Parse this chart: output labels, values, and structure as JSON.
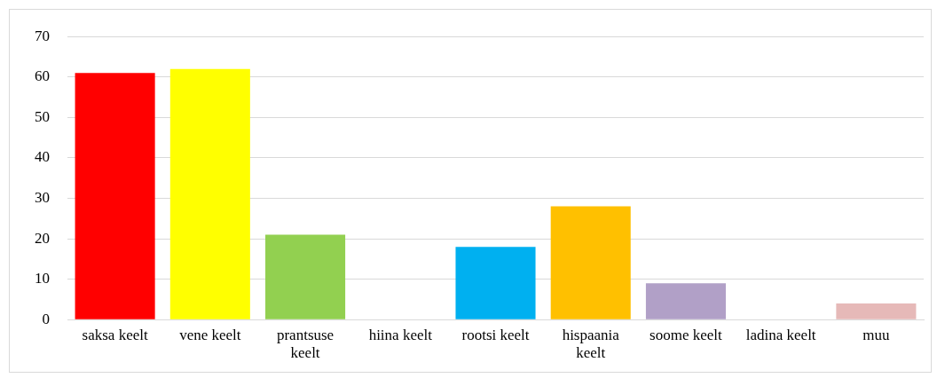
{
  "chart_data": {
    "type": "bar",
    "categories": [
      "saksa keelt",
      "vene keelt",
      "prantsuse keelt",
      "hiina keelt",
      "rootsi keelt",
      "hispaania keelt",
      "soome keelt",
      "ladina keelt",
      "muu"
    ],
    "values": [
      61,
      62,
      21,
      0,
      18,
      28,
      9,
      0,
      4
    ],
    "colors": [
      "#ff0000",
      "#ffff00",
      "#92d050",
      "#4472c4",
      "#00b0f0",
      "#ffc000",
      "#b1a0c7",
      "#7f7f7f",
      "#e6b9b8"
    ],
    "ylim": [
      0,
      70
    ],
    "yticks": [
      0,
      10,
      20,
      30,
      40,
      50,
      60,
      70
    ],
    "grid": "y",
    "legend": false
  }
}
